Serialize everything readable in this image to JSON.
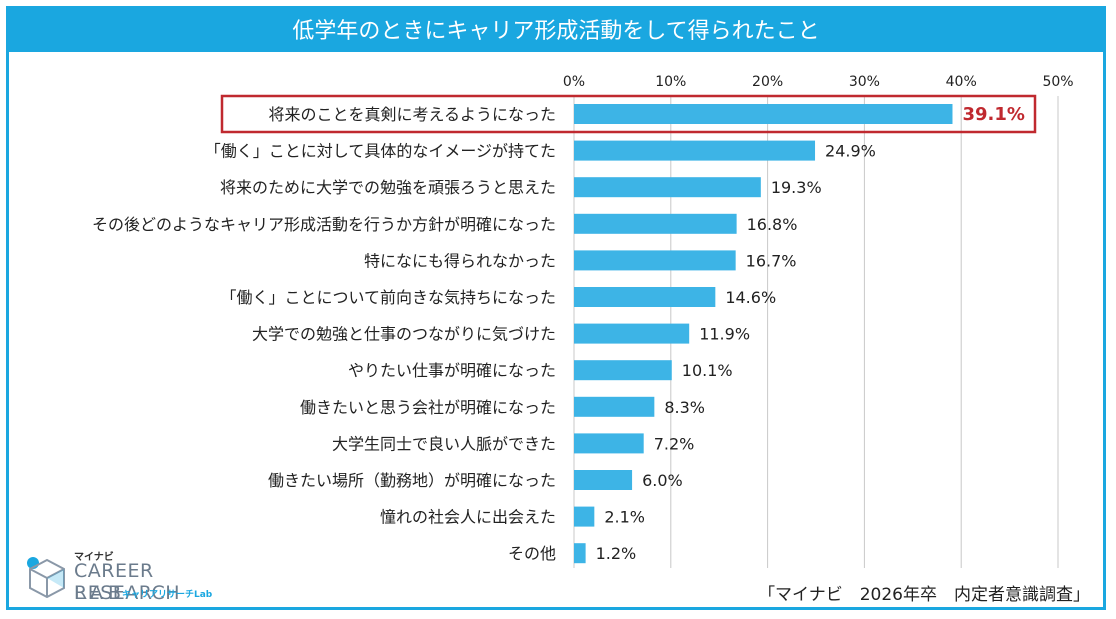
{
  "title": "低学年のときにキャリア形成活動をして得られたこと",
  "source": "「マイナビ　2026年卒　内定者意識調査」",
  "logo": {
    "brand_small": "マイナビ",
    "brand_main": "CAREER RESEARCH",
    "brand_lab": "LAB",
    "brand_sub": "キャリアリサーチLab"
  },
  "colors": {
    "bar": "#3db4e6",
    "header": "#1aa7e0",
    "highlight": "#c0292f",
    "grid": "#c8c8c8"
  },
  "chart_data": {
    "type": "bar",
    "orientation": "horizontal",
    "xlim": [
      0,
      50
    ],
    "ticks": [
      "0%",
      "10%",
      "20%",
      "30%",
      "40%",
      "50%"
    ],
    "tick_values": [
      0,
      10,
      20,
      30,
      40,
      50
    ],
    "categories": [
      "将来のことを真剣に考えるようになった",
      "「働く」ことに対して具体的なイメージが持てた",
      "将来のために大学での勉強を頑張ろうと思えた",
      "その後どのようなキャリア形成活動を行うか方針が明確になった",
      "特になにも得られなかった",
      "「働く」ことについて前向きな気持ちになった",
      "大学での勉強と仕事のつながりに気づけた",
      "やりたい仕事が明確になった",
      "働きたいと思う会社が明確になった",
      "大学生同士で良い人脈ができた",
      "働きたい場所（勤務地）が明確になった",
      "憧れの社会人に出会えた",
      "その他"
    ],
    "values": [
      39.1,
      24.9,
      19.3,
      16.8,
      16.7,
      14.6,
      11.9,
      10.1,
      8.3,
      7.2,
      6.0,
      2.1,
      1.2
    ],
    "labels": [
      "39.1%",
      "24.9%",
      "19.3%",
      "16.8%",
      "16.7%",
      "14.6%",
      "11.9%",
      "10.1%",
      "8.3%",
      "7.2%",
      "6.0%",
      "2.1%",
      "1.2%"
    ],
    "highlight_index": 0,
    "grid": true
  }
}
